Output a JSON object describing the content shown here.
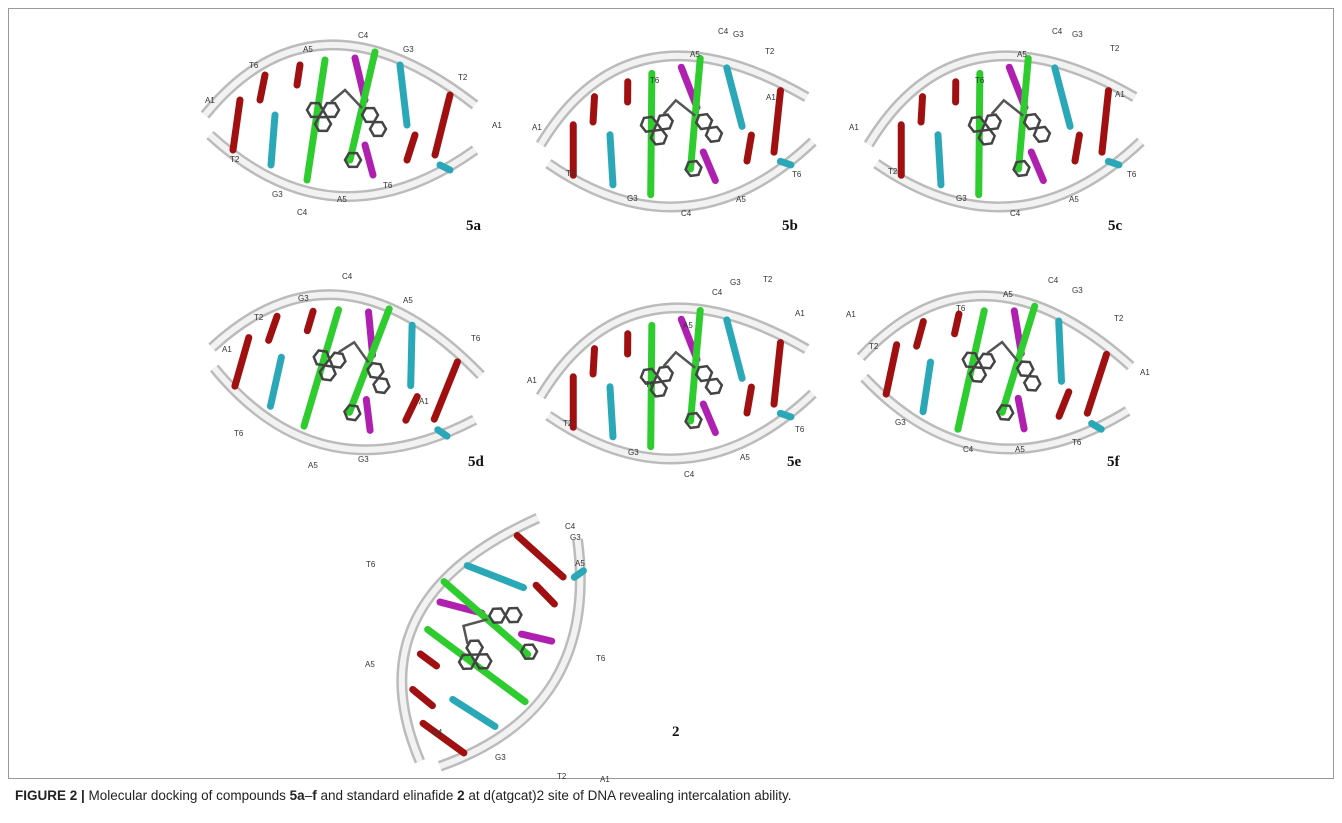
{
  "panels": [
    {
      "label": "5a",
      "nucleotides": [
        "C4",
        "A5",
        "G3",
        "T6",
        "T2",
        "A1",
        "A1",
        "T2",
        "G3",
        "C4",
        "A5",
        "T6"
      ]
    },
    {
      "label": "5b",
      "nucleotides": [
        "C4",
        "G3",
        "A5",
        "T2",
        "T6",
        "A1",
        "A1",
        "T2",
        "G3",
        "C4",
        "A5",
        "T6"
      ]
    },
    {
      "label": "5c",
      "nucleotides": [
        "C4",
        "G3",
        "A5",
        "T2",
        "T6",
        "A1",
        "A1",
        "T2",
        "G3",
        "C4",
        "A5",
        "T6"
      ]
    },
    {
      "label": "5d",
      "nucleotides": [
        "C4",
        "G3",
        "A5",
        "T2",
        "T6",
        "A1",
        "A1",
        "T6",
        "G3",
        "A5"
      ]
    },
    {
      "label": "5e",
      "nucleotides": [
        "G3",
        "T2",
        "C4",
        "A1",
        "A5",
        "T6",
        "A1",
        "T2",
        "G3",
        "A5",
        "C4",
        "T6"
      ]
    },
    {
      "label": "5f",
      "nucleotides": [
        "C4",
        "A5",
        "G3",
        "T6",
        "A1",
        "T2",
        "T2",
        "A1",
        "G3",
        "C4",
        "A5",
        "T6"
      ]
    },
    {
      "label": "2",
      "nucleotides": [
        "C4",
        "G3",
        "A5",
        "T6",
        "T6",
        "A5",
        "C4",
        "G3",
        "T2",
        "A1"
      ]
    }
  ],
  "caption": {
    "figure": "FIGURE 2 |",
    "parts": [
      " Molecular docking of compounds ",
      "5a",
      "–",
      "f",
      " and standard elinafide ",
      "2",
      " at d(atgcat)2 site of DNA revealing intercalation ability."
    ]
  }
}
